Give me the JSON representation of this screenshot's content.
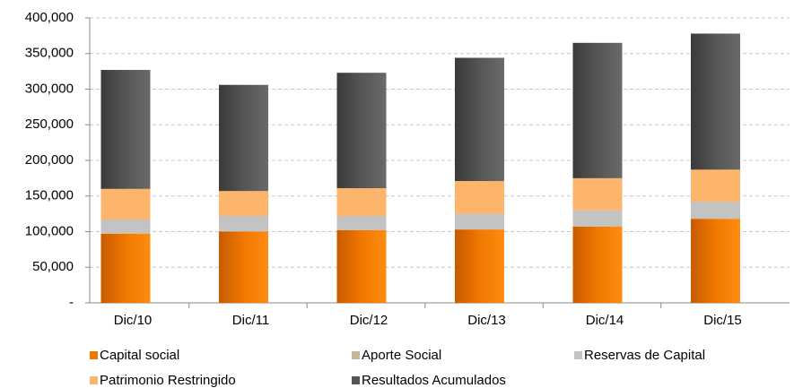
{
  "chart_data": {
    "type": "stacked_bar",
    "categories": [
      "Dic/10",
      "Dic/11",
      "Dic/12",
      "Dic/13",
      "Dic/14",
      "Dic/15"
    ],
    "series": [
      {
        "name": "Capital social",
        "color": "#f07800",
        "values": [
          97000,
          100000,
          102000,
          103000,
          107000,
          118000
        ]
      },
      {
        "name": "Aporte Social",
        "color": "#c8b694",
        "values": [
          1000,
          1000,
          1000,
          1000,
          1000,
          1000
        ]
      },
      {
        "name": "Reservas de Capital",
        "color": "#c3c3c3",
        "values": [
          19000,
          21000,
          19000,
          21000,
          22000,
          23000
        ]
      },
      {
        "name": "Patrimonio Restringido",
        "color": "#fdb56b",
        "values": [
          43000,
          35000,
          39000,
          46000,
          45000,
          45000
        ]
      },
      {
        "name": "Resultados Acumulados",
        "color": "#555555",
        "values": [
          167000,
          149000,
          162000,
          173000,
          190000,
          191000
        ]
      }
    ],
    "ylim": [
      0,
      400000
    ],
    "yticks": [
      {
        "value": 0,
        "label": "-"
      },
      {
        "value": 50000,
        "label": "50,000"
      },
      {
        "value": 100000,
        "label": "100,000"
      },
      {
        "value": 150000,
        "label": "150,000"
      },
      {
        "value": 200000,
        "label": "200,000"
      },
      {
        "value": 250000,
        "label": "250,000"
      },
      {
        "value": 300000,
        "label": "300,000"
      },
      {
        "value": 350000,
        "label": "350,000"
      },
      {
        "value": 400000,
        "label": "400,000"
      }
    ],
    "grid": true
  }
}
